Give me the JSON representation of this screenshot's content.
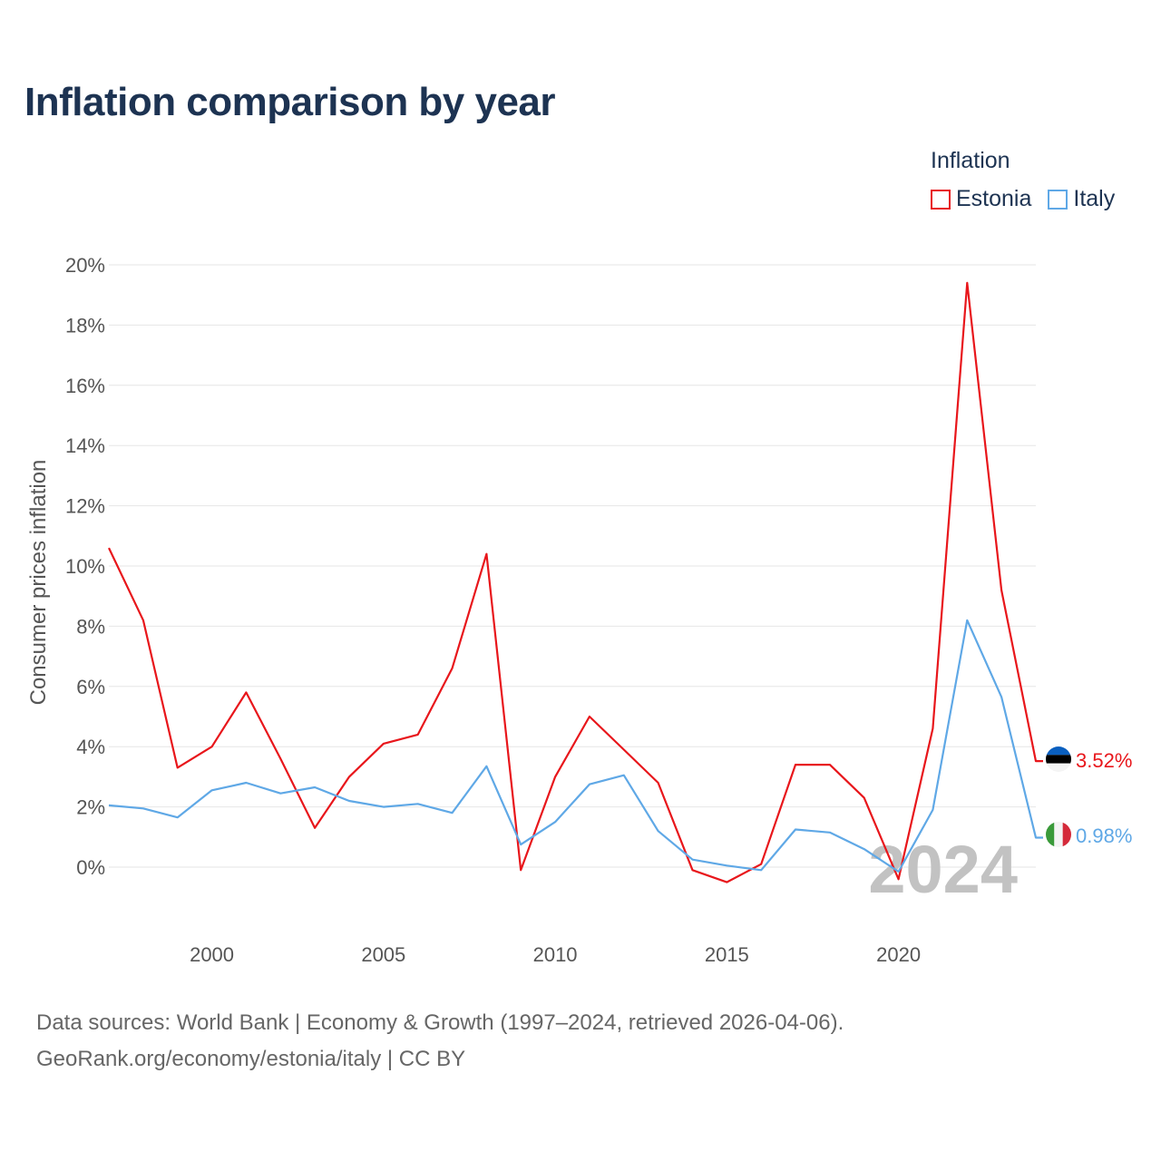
{
  "title": "Inflation comparison by year",
  "legend": {
    "title": "Inflation",
    "items": [
      {
        "label": "Estonia",
        "color": "#e8161b"
      },
      {
        "label": "Italy",
        "color": "#5fa8e6"
      }
    ]
  },
  "source": {
    "line1": "Data sources: World Bank | Economy & Growth (1997–2024, retrieved 2026-04-06).",
    "line2": "GeoRank.org/economy/estonia/italy | CC BY"
  },
  "chart_data": {
    "type": "line",
    "title": "Inflation comparison by year",
    "xlabel": "",
    "ylabel": "Consumer prices inflation",
    "xlim": [
      1997,
      2024
    ],
    "ylim": [
      -2,
      20
    ],
    "x_ticks": [
      2000,
      2005,
      2010,
      2015,
      2020
    ],
    "y_ticks": [
      0,
      2,
      4,
      6,
      8,
      10,
      12,
      14,
      16,
      18,
      20
    ],
    "y_tick_labels": [
      "0%",
      "2%",
      "4%",
      "6%",
      "8%",
      "10%",
      "12%",
      "14%",
      "16%",
      "18%",
      "20%"
    ],
    "grid": true,
    "legend_position": "top-right",
    "year_watermark": "2024",
    "x": [
      1997,
      1998,
      1999,
      2000,
      2001,
      2002,
      2003,
      2004,
      2005,
      2006,
      2007,
      2008,
      2009,
      2010,
      2011,
      2012,
      2013,
      2014,
      2015,
      2016,
      2017,
      2018,
      2019,
      2020,
      2021,
      2022,
      2023,
      2024
    ],
    "series": [
      {
        "name": "Estonia",
        "color": "#e8161b",
        "end_label": "3.52%",
        "values": [
          10.6,
          8.2,
          3.3,
          4.0,
          5.8,
          3.6,
          1.3,
          3.0,
          4.1,
          4.4,
          6.6,
          10.4,
          -0.1,
          3.0,
          5.0,
          3.9,
          2.8,
          -0.1,
          -0.5,
          0.1,
          3.4,
          3.4,
          2.3,
          -0.4,
          4.6,
          19.4,
          9.2,
          3.52
        ]
      },
      {
        "name": "Italy",
        "color": "#5fa8e6",
        "end_label": "0.98%",
        "values": [
          2.05,
          1.95,
          1.65,
          2.55,
          2.8,
          2.45,
          2.65,
          2.2,
          2.0,
          2.1,
          1.8,
          3.35,
          0.75,
          1.5,
          2.75,
          3.05,
          1.2,
          0.25,
          0.05,
          -0.1,
          1.25,
          1.15,
          0.6,
          -0.15,
          1.9,
          8.2,
          5.65,
          0.98
        ]
      }
    ]
  }
}
